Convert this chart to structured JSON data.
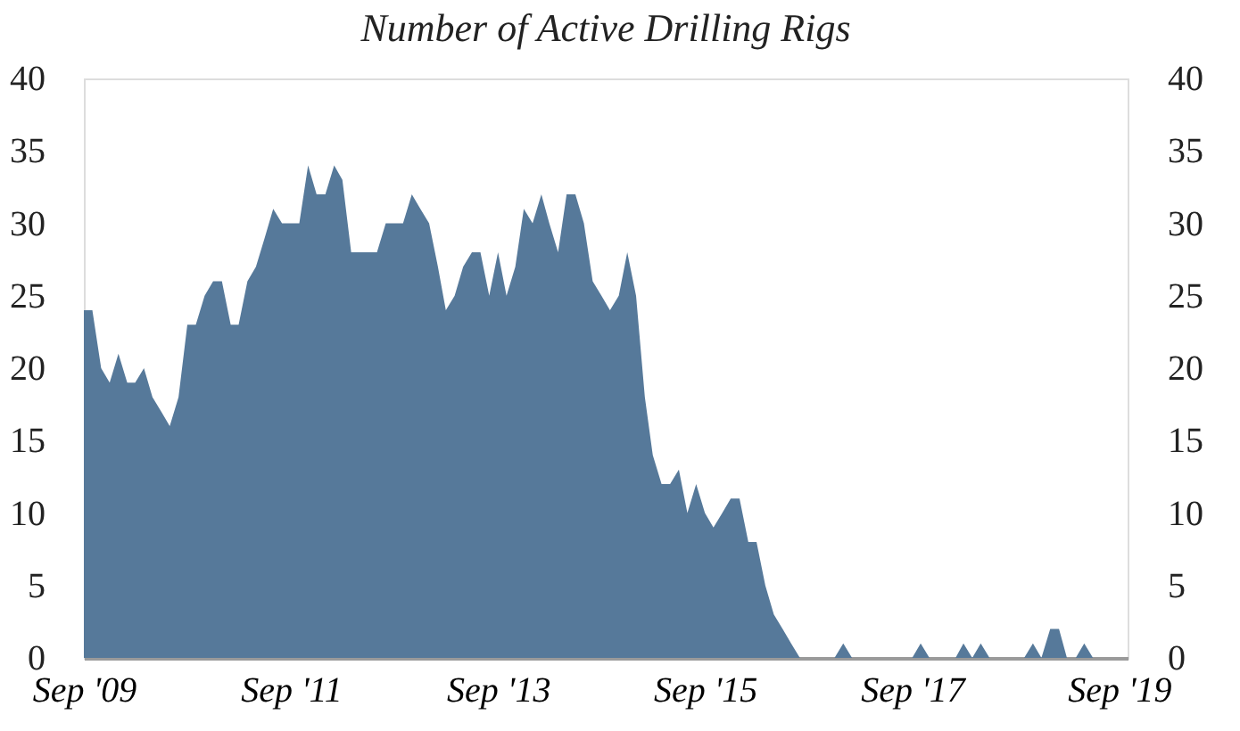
{
  "chart_data": {
    "type": "area",
    "title": "Number of Active Drilling Rigs",
    "x": [
      "2009-09",
      "2009-10",
      "2009-11",
      "2009-12",
      "2010-01",
      "2010-02",
      "2010-03",
      "2010-04",
      "2010-05",
      "2010-06",
      "2010-07",
      "2010-08",
      "2010-09",
      "2010-10",
      "2010-11",
      "2010-12",
      "2011-01",
      "2011-02",
      "2011-03",
      "2011-04",
      "2011-05",
      "2011-06",
      "2011-07",
      "2011-08",
      "2011-09",
      "2011-10",
      "2011-11",
      "2011-12",
      "2012-01",
      "2012-02",
      "2012-03",
      "2012-04",
      "2012-05",
      "2012-06",
      "2012-07",
      "2012-08",
      "2012-09",
      "2012-10",
      "2012-11",
      "2012-12",
      "2013-01",
      "2013-02",
      "2013-03",
      "2013-04",
      "2013-05",
      "2013-06",
      "2013-07",
      "2013-08",
      "2013-09",
      "2013-10",
      "2013-11",
      "2013-12",
      "2014-01",
      "2014-02",
      "2014-03",
      "2014-04",
      "2014-05",
      "2014-06",
      "2014-07",
      "2014-08",
      "2014-09",
      "2014-10",
      "2014-11",
      "2014-12",
      "2015-01",
      "2015-02",
      "2015-03",
      "2015-04",
      "2015-05",
      "2015-06",
      "2015-07",
      "2015-08",
      "2015-09",
      "2015-10",
      "2015-11",
      "2015-12",
      "2016-01",
      "2016-02",
      "2016-03",
      "2016-04",
      "2016-05",
      "2016-06",
      "2016-07",
      "2016-08",
      "2016-09",
      "2016-10",
      "2016-11",
      "2016-12",
      "2017-01",
      "2017-02",
      "2017-03",
      "2017-04",
      "2017-05",
      "2017-06",
      "2017-07",
      "2017-08",
      "2017-09",
      "2017-10",
      "2017-11",
      "2017-12",
      "2018-01",
      "2018-02",
      "2018-03",
      "2018-04",
      "2018-05",
      "2018-06",
      "2018-07",
      "2018-08",
      "2018-09",
      "2018-10",
      "2018-11",
      "2018-12",
      "2019-01",
      "2019-02",
      "2019-03",
      "2019-04",
      "2019-05",
      "2019-06",
      "2019-07",
      "2019-08",
      "2019-09"
    ],
    "series": [
      {
        "color": "#56799a",
        "values": [
          24,
          24,
          20,
          19,
          21,
          19,
          19,
          20,
          18,
          17,
          16,
          18,
          23,
          23,
          25,
          26,
          26,
          23,
          23,
          26,
          27,
          29,
          31,
          30,
          30,
          30,
          34,
          32,
          32,
          34,
          33,
          28,
          28,
          28,
          28,
          30,
          30,
          30,
          32,
          31,
          30,
          27,
          24,
          25,
          27,
          28,
          28,
          25,
          28,
          25,
          27,
          31,
          30,
          32,
          30,
          28,
          32,
          32,
          30,
          26,
          25,
          24,
          25,
          28,
          25,
          18,
          14,
          12,
          12,
          13,
          10,
          12,
          10,
          9,
          10,
          11,
          11,
          8,
          8,
          5,
          3,
          2,
          1,
          0,
          0,
          0,
          0,
          0,
          1,
          0,
          0,
          0,
          0,
          0,
          0,
          0,
          0,
          1,
          0,
          0,
          0,
          0,
          1,
          0,
          1,
          0,
          0,
          0,
          0,
          0,
          1,
          0,
          2,
          2,
          0,
          0,
          1,
          0,
          0,
          0,
          0
        ]
      }
    ],
    "xlim": [
      "2009-09",
      "2019-10"
    ],
    "xticks": [
      {
        "value": "2009-09",
        "label": "Sep '09"
      },
      {
        "value": "2011-09",
        "label": "Sep '11"
      },
      {
        "value": "2013-09",
        "label": "Sep '13"
      },
      {
        "value": "2015-09",
        "label": "Sep '15"
      },
      {
        "value": "2017-09",
        "label": "Sep '17"
      },
      {
        "value": "2019-09",
        "label": "Sep '19"
      }
    ],
    "ylim": [
      0,
      40
    ],
    "yticks": [
      0,
      5,
      10,
      15,
      20,
      25,
      30,
      35,
      40
    ],
    "y2lim": [
      0,
      40
    ],
    "y2ticks": [
      0,
      5,
      10,
      15,
      20,
      25,
      30,
      35,
      40
    ],
    "grid": false
  }
}
